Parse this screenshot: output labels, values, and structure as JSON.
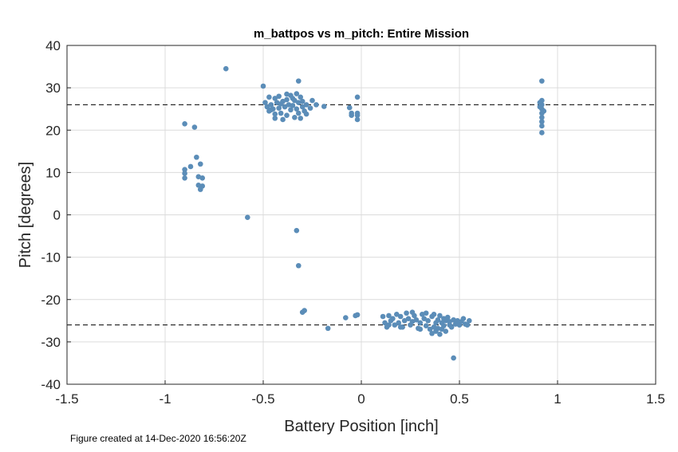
{
  "chart_data": {
    "type": "scatter",
    "title": "m_battpos vs m_pitch: Entire Mission",
    "xlabel": "Battery Position [inch]",
    "ylabel": "Pitch [degrees]",
    "xlim": [
      -1.5,
      1.5
    ],
    "ylim": [
      -40,
      40
    ],
    "xticks": [
      -1.5,
      -1,
      -0.5,
      0,
      0.5,
      1,
      1.5
    ],
    "xtick_labels": [
      "-1.5",
      "-1",
      "-0.5",
      "0",
      "0.5",
      "1",
      "1.5"
    ],
    "yticks": [
      -40,
      -30,
      -20,
      -10,
      0,
      10,
      20,
      30,
      40
    ],
    "ytick_labels": [
      "-40",
      "-30",
      "-20",
      "-10",
      "0",
      "10",
      "20",
      "30",
      "40"
    ],
    "grid": true,
    "marker_color": "#5b8db8",
    "reference_lines": [
      26,
      -26
    ],
    "points": [
      [
        -0.69,
        34.5
      ],
      [
        -0.5,
        30.4
      ],
      [
        -0.32,
        31.6
      ],
      [
        -0.9,
        21.5
      ],
      [
        -0.85,
        20.7
      ],
      [
        -0.84,
        13.6
      ],
      [
        -0.82,
        12.0
      ],
      [
        -0.87,
        11.4
      ],
      [
        -0.9,
        10.7
      ],
      [
        -0.9,
        9.8
      ],
      [
        -0.9,
        8.7
      ],
      [
        -0.83,
        9.0
      ],
      [
        -0.81,
        8.7
      ],
      [
        -0.83,
        7.0
      ],
      [
        -0.81,
        6.8
      ],
      [
        -0.82,
        6.0
      ],
      [
        -0.58,
        -0.6
      ],
      [
        -0.33,
        -3.7
      ],
      [
        -0.32,
        -12.0
      ],
      [
        -0.3,
        -23.0
      ],
      [
        -0.29,
        -22.6
      ],
      [
        -0.17,
        -26.8
      ],
      [
        -0.08,
        -24.3
      ],
      [
        -0.03,
        -23.8
      ],
      [
        -0.02,
        -23.6
      ],
      [
        -0.25,
        27.0
      ],
      [
        -0.26,
        25.2
      ],
      [
        -0.23,
        26.0
      ],
      [
        -0.19,
        25.6
      ],
      [
        -0.06,
        25.3
      ],
      [
        -0.05,
        24.0
      ],
      [
        -0.05,
        23.5
      ],
      [
        -0.02,
        27.8
      ],
      [
        -0.02,
        24.0
      ],
      [
        -0.02,
        22.5
      ],
      [
        -0.02,
        23.5
      ],
      [
        -0.49,
        26.5
      ],
      [
        -0.48,
        25.5
      ],
      [
        -0.47,
        27.8
      ],
      [
        -0.47,
        24.5
      ],
      [
        -0.46,
        26.0
      ],
      [
        -0.45,
        25.0
      ],
      [
        -0.44,
        27.5
      ],
      [
        -0.44,
        23.8
      ],
      [
        -0.43,
        26.5
      ],
      [
        -0.42,
        25.2
      ],
      [
        -0.42,
        28.0
      ],
      [
        -0.41,
        24.0
      ],
      [
        -0.4,
        26.8
      ],
      [
        -0.4,
        22.5
      ],
      [
        -0.39,
        25.5
      ],
      [
        -0.38,
        27.2
      ],
      [
        -0.38,
        23.5
      ],
      [
        -0.37,
        26.0
      ],
      [
        -0.36,
        24.8
      ],
      [
        -0.36,
        28.2
      ],
      [
        -0.35,
        25.8
      ],
      [
        -0.34,
        23.0
      ],
      [
        -0.34,
        27.0
      ],
      [
        -0.33,
        25.0
      ],
      [
        -0.32,
        26.5
      ],
      [
        -0.32,
        24.0
      ],
      [
        -0.31,
        27.8
      ],
      [
        -0.31,
        22.8
      ],
      [
        -0.3,
        25.5
      ],
      [
        -0.3,
        26.8
      ],
      [
        -0.29,
        24.5
      ],
      [
        -0.28,
        23.8
      ],
      [
        -0.28,
        26.0
      ],
      [
        -0.44,
        22.8
      ],
      [
        -0.46,
        24.8
      ],
      [
        -0.38,
        28.5
      ],
      [
        -0.35,
        27.5
      ],
      [
        -0.41,
        26.2
      ],
      [
        -0.33,
        28.6
      ],
      [
        0.92,
        31.6
      ],
      [
        0.92,
        27.0
      ],
      [
        0.92,
        26.0
      ],
      [
        0.91,
        25.5
      ],
      [
        0.92,
        25.0
      ],
      [
        0.92,
        24.0
      ],
      [
        0.92,
        23.0
      ],
      [
        0.92,
        22.0
      ],
      [
        0.92,
        21.0
      ],
      [
        0.92,
        19.4
      ],
      [
        0.93,
        24.5
      ],
      [
        0.91,
        26.5
      ],
      [
        0.11,
        -24.0
      ],
      [
        0.12,
        -25.5
      ],
      [
        0.13,
        -26.5
      ],
      [
        0.14,
        -23.8
      ],
      [
        0.15,
        -25.0
      ],
      [
        0.16,
        -24.5
      ],
      [
        0.17,
        -26.0
      ],
      [
        0.18,
        -23.5
      ],
      [
        0.19,
        -25.5
      ],
      [
        0.2,
        -24.0
      ],
      [
        0.21,
        -26.5
      ],
      [
        0.22,
        -25.0
      ],
      [
        0.23,
        -23.2
      ],
      [
        0.24,
        -24.5
      ],
      [
        0.25,
        -26.0
      ],
      [
        0.26,
        -25.2
      ],
      [
        0.27,
        -23.8
      ],
      [
        0.28,
        -24.8
      ],
      [
        0.29,
        -26.8
      ],
      [
        0.3,
        -25.5
      ],
      [
        0.31,
        -23.5
      ],
      [
        0.32,
        -24.5
      ],
      [
        0.33,
        -26.2
      ],
      [
        0.34,
        -25.0
      ],
      [
        0.35,
        -27.0
      ],
      [
        0.36,
        -24.0
      ],
      [
        0.37,
        -26.5
      ],
      [
        0.37,
        -23.5
      ],
      [
        0.38,
        -25.5
      ],
      [
        0.38,
        -27.5
      ],
      [
        0.39,
        -24.8
      ],
      [
        0.39,
        -26.8
      ],
      [
        0.4,
        -28.2
      ],
      [
        0.4,
        -23.8
      ],
      [
        0.41,
        -25.5
      ],
      [
        0.41,
        -27.0
      ],
      [
        0.42,
        -24.5
      ],
      [
        0.42,
        -26.2
      ],
      [
        0.43,
        -25.0
      ],
      [
        0.43,
        -27.5
      ],
      [
        0.44,
        -24.2
      ],
      [
        0.45,
        -26.0
      ],
      [
        0.45,
        -25.2
      ],
      [
        0.46,
        -26.5
      ],
      [
        0.47,
        -24.8
      ],
      [
        0.48,
        -25.8
      ],
      [
        0.49,
        -25.0
      ],
      [
        0.5,
        -26.0
      ],
      [
        0.51,
        -25.2
      ],
      [
        0.52,
        -24.5
      ],
      [
        0.53,
        -25.8
      ],
      [
        0.54,
        -26.0
      ],
      [
        0.55,
        -25.0
      ],
      [
        0.47,
        -33.8
      ],
      [
        0.26,
        -23.0
      ],
      [
        0.33,
        -23.2
      ],
      [
        0.36,
        -28.0
      ],
      [
        0.3,
        -27.0
      ],
      [
        0.2,
        -26.5
      ],
      [
        0.14,
        -26.0
      ]
    ]
  },
  "footer_text": "Figure created at 14-Dec-2020 16:56:20Z"
}
